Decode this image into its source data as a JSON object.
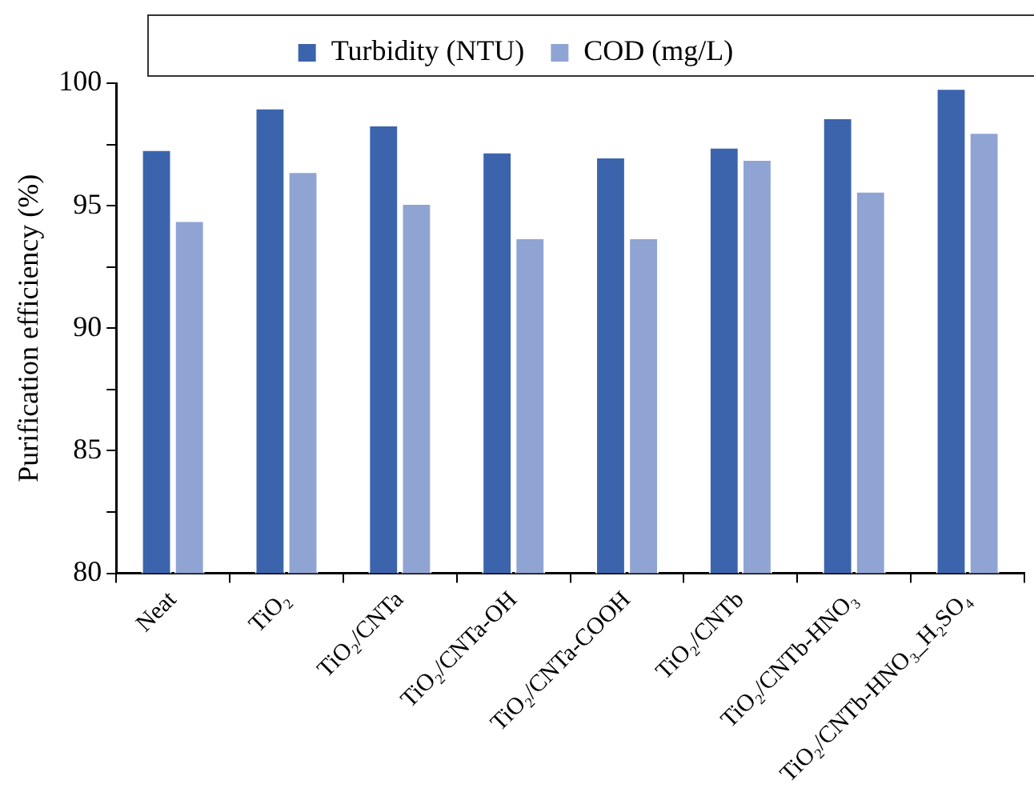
{
  "chart_data": {
    "type": "bar",
    "categories": [
      "Neat",
      "TiO₂",
      "TiO₂/CNTa",
      "TiO₂/CNTa-OH",
      "TiO₂/CNTa-COOH",
      "TiO₂/CNTb",
      "TiO₂/CNTb-HNO₃",
      "TiO₂/CNTb-HNO₃_H₂SO₄"
    ],
    "series": [
      {
        "name": "Turbidity (NTU)",
        "color": "#3c64ad",
        "values": [
          97.3,
          99.0,
          98.3,
          97.2,
          97.0,
          97.4,
          98.6,
          99.8
        ]
      },
      {
        "name": "COD (mg/L)",
        "color": "#90a4d4",
        "values": [
          94.4,
          96.4,
          95.1,
          93.7,
          93.7,
          96.9,
          95.6,
          98.0
        ]
      }
    ],
    "ylabel": "Purification efficiency (%)",
    "ylim": [
      80,
      100
    ],
    "yticks": [
      80,
      {
        "value": 82.5,
        "label": null
      },
      85,
      {
        "value": 87.5,
        "label": null
      },
      90,
      {
        "value": 92.5,
        "label": null
      },
      95,
      {
        "value": 97.5,
        "label": null
      },
      100
    ],
    "grid": false,
    "legend": "top"
  }
}
